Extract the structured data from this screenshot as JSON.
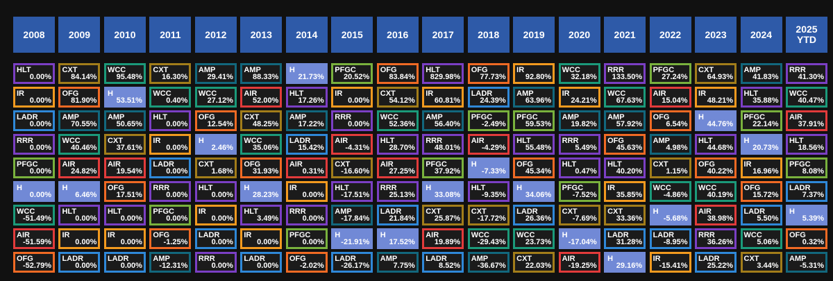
{
  "chart_data": {
    "type": "table",
    "years": [
      "2008",
      "2009",
      "2010",
      "2011",
      "2012",
      "2013",
      "2014",
      "2015",
      "2016",
      "2017",
      "2018",
      "2019",
      "2020",
      "2021",
      "2022",
      "2023",
      "2024",
      "2025\nYTD"
    ],
    "ticker_colors": {
      "HLT": "#7b3fc4",
      "IR": "#f29a1f",
      "LADR": "#2f88d8",
      "RRR": "#7b3fc4",
      "PFGC": "#79b13d",
      "H": "#7189d6",
      "WCC": "#1b9a7a",
      "AIR": "#e23b3b",
      "OFG": "#f06a24",
      "CXT": "#a27d1a",
      "AMP": "#12677d"
    },
    "columns": [
      [
        [
          "HLT",
          "0.00%"
        ],
        [
          "IR",
          "0.00%"
        ],
        [
          "LADR",
          "0.00%"
        ],
        [
          "RRR",
          "0.00%"
        ],
        [
          "PFGC",
          "0.00%"
        ],
        [
          "H",
          "0.00%"
        ],
        [
          "WCC",
          "-51.49%"
        ],
        [
          "AIR",
          "-51.59%"
        ],
        [
          "OFG",
          "-52.79%"
        ]
      ],
      [
        [
          "CXT",
          "84.14%"
        ],
        [
          "OFG",
          "81.90%"
        ],
        [
          "AMP",
          "70.55%"
        ],
        [
          "WCC",
          "40.46%"
        ],
        [
          "AIR",
          "24.82%"
        ],
        [
          "H",
          "6.46%"
        ],
        [
          "HLT",
          "0.00%"
        ],
        [
          "IR",
          "0.00%"
        ],
        [
          "LADR",
          "0.00%"
        ]
      ],
      [
        [
          "WCC",
          "95.48%"
        ],
        [
          "H",
          "53.51%"
        ],
        [
          "AMP",
          "50.65%"
        ],
        [
          "CXT",
          "37.61%"
        ],
        [
          "AIR",
          "19.54%"
        ],
        [
          "OFG",
          "17.51%"
        ],
        [
          "HLT",
          "0.00%"
        ],
        [
          "IR",
          "0.00%"
        ],
        [
          "LADR",
          "0.00%"
        ]
      ],
      [
        [
          "CXT",
          "16.30%"
        ],
        [
          "WCC",
          "0.40%"
        ],
        [
          "HLT",
          "0.00%"
        ],
        [
          "IR",
          "0.00%"
        ],
        [
          "LADR",
          "0.00%"
        ],
        [
          "RRR",
          "0.00%"
        ],
        [
          "PFGC",
          "0.00%"
        ],
        [
          "OFG",
          "-1.25%"
        ],
        [
          "AMP",
          "-12.31%"
        ]
      ],
      [
        [
          "AMP",
          "29.41%"
        ],
        [
          "WCC",
          "27.12%"
        ],
        [
          "OFG",
          "12.54%"
        ],
        [
          "H",
          "2.46%"
        ],
        [
          "CXT",
          "1.68%"
        ],
        [
          "HLT",
          "0.00%"
        ],
        [
          "IR",
          "0.00%"
        ],
        [
          "LADR",
          "0.00%"
        ],
        [
          "RRR",
          "0.00%"
        ]
      ],
      [
        [
          "AMP",
          "88.33%"
        ],
        [
          "AIR",
          "52.00%"
        ],
        [
          "CXT",
          "48.25%"
        ],
        [
          "WCC",
          "35.06%"
        ],
        [
          "OFG",
          "31.93%"
        ],
        [
          "H",
          "28.23%"
        ],
        [
          "HLT",
          "3.49%"
        ],
        [
          "IR",
          "0.00%"
        ],
        [
          "LADR",
          "0.00%"
        ]
      ],
      [
        [
          "H",
          "21.73%"
        ],
        [
          "HLT",
          "17.26%"
        ],
        [
          "AMP",
          "17.22%"
        ],
        [
          "LADR",
          "15.42%"
        ],
        [
          "AIR",
          "0.31%"
        ],
        [
          "IR",
          "0.00%"
        ],
        [
          "RRR",
          "0.00%"
        ],
        [
          "PFGC",
          "0.00%"
        ],
        [
          "OFG",
          "-2.02%"
        ]
      ],
      [
        [
          "PFGC",
          "20.52%"
        ],
        [
          "IR",
          "0.00%"
        ],
        [
          "RRR",
          "0.00%"
        ],
        [
          "AIR",
          "-4.31%"
        ],
        [
          "CXT",
          "-16.60%"
        ],
        [
          "HLT",
          "-17.51%"
        ],
        [
          "AMP",
          "-17.84%"
        ],
        [
          "H",
          "-21.91%"
        ],
        [
          "LADR",
          "-26.17%"
        ]
      ],
      [
        [
          "OFG",
          "83.84%"
        ],
        [
          "CXT",
          "54.12%"
        ],
        [
          "WCC",
          "52.36%"
        ],
        [
          "HLT",
          "28.70%"
        ],
        [
          "AIR",
          "27.25%"
        ],
        [
          "RRR",
          "25.13%"
        ],
        [
          "LADR",
          "21.84%"
        ],
        [
          "H",
          "17.52%"
        ],
        [
          "AMP",
          "7.75%"
        ]
      ],
      [
        [
          "HLT",
          "829.98%"
        ],
        [
          "IR",
          "60.81%"
        ],
        [
          "AMP",
          "56.40%"
        ],
        [
          "RRR",
          "48.01%"
        ],
        [
          "PFGC",
          "37.92%"
        ],
        [
          "H",
          "33.08%"
        ],
        [
          "CXT",
          "25.87%"
        ],
        [
          "AIR",
          "19.89%"
        ],
        [
          "LADR",
          "8.52%"
        ]
      ],
      [
        [
          "OFG",
          "77.73%"
        ],
        [
          "LADR",
          "24.39%"
        ],
        [
          "PFGC",
          "-2.49%"
        ],
        [
          "AIR",
          "-4.29%"
        ],
        [
          "H",
          "-7.33%"
        ],
        [
          "HLT",
          "-9.35%"
        ],
        [
          "CXT",
          "-17.72%"
        ],
        [
          "WCC",
          "-29.43%"
        ],
        [
          "AMP",
          "-36.67%"
        ]
      ],
      [
        [
          "IR",
          "92.80%"
        ],
        [
          "AMP",
          "63.96%"
        ],
        [
          "PFGC",
          "59.53%"
        ],
        [
          "HLT",
          "55.48%"
        ],
        [
          "OFG",
          "45.34%"
        ],
        [
          "H",
          "34.06%"
        ],
        [
          "LADR",
          "26.36%"
        ],
        [
          "WCC",
          "23.73%"
        ],
        [
          "CXT",
          "22.03%"
        ]
      ],
      [
        [
          "WCC",
          "32.18%"
        ],
        [
          "IR",
          "24.21%"
        ],
        [
          "AMP",
          "19.82%"
        ],
        [
          "RRR",
          "5.49%"
        ],
        [
          "HLT",
          "0.47%"
        ],
        [
          "PFGC",
          "-7.52%"
        ],
        [
          "CXT",
          "-7.69%"
        ],
        [
          "H",
          "-17.04%"
        ],
        [
          "AIR",
          "-19.25%"
        ]
      ],
      [
        [
          "RRR",
          "133.50%"
        ],
        [
          "WCC",
          "67.63%"
        ],
        [
          "AMP",
          "57.92%"
        ],
        [
          "OFG",
          "45.63%"
        ],
        [
          "HLT",
          "40.20%"
        ],
        [
          "IR",
          "35.85%"
        ],
        [
          "CXT",
          "33.36%"
        ],
        [
          "LADR",
          "31.28%"
        ],
        [
          "H",
          "29.16%"
        ]
      ],
      [
        [
          "PFGC",
          "27.24%"
        ],
        [
          "AIR",
          "15.04%"
        ],
        [
          "OFG",
          "6.54%"
        ],
        [
          "AMP",
          "4.98%"
        ],
        [
          "CXT",
          "1.15%"
        ],
        [
          "WCC",
          "-4.86%"
        ],
        [
          "H",
          "-5.68%"
        ],
        [
          "LADR",
          "-8.95%"
        ],
        [
          "IR",
          "-15.41%"
        ]
      ],
      [
        [
          "CXT",
          "64.93%"
        ],
        [
          "IR",
          "48.21%"
        ],
        [
          "H",
          "44.76%"
        ],
        [
          "HLT",
          "44.68%"
        ],
        [
          "OFG",
          "40.22%"
        ],
        [
          "WCC",
          "40.19%"
        ],
        [
          "AIR",
          "38.98%"
        ],
        [
          "RRR",
          "36.26%"
        ],
        [
          "LADR",
          "25.22%"
        ]
      ],
      [
        [
          "AMP",
          "41.83%"
        ],
        [
          "HLT",
          "35.88%"
        ],
        [
          "PFGC",
          "22.14%"
        ],
        [
          "H",
          "20.73%"
        ],
        [
          "IR",
          "16.96%"
        ],
        [
          "OFG",
          "15.72%"
        ],
        [
          "LADR",
          "5.50%"
        ],
        [
          "WCC",
          "5.06%"
        ],
        [
          "CXT",
          "3.44%"
        ]
      ],
      [
        [
          "RRR",
          "41.30%"
        ],
        [
          "WCC",
          "40.47%"
        ],
        [
          "AIR",
          "37.91%"
        ],
        [
          "HLT",
          "18.56%"
        ],
        [
          "PFGC",
          "8.08%"
        ],
        [
          "LADR",
          "7.37%"
        ],
        [
          "H",
          "5.39%"
        ],
        [
          "OFG",
          "0.32%"
        ],
        [
          "AMP",
          "-5.31%"
        ]
      ]
    ]
  }
}
